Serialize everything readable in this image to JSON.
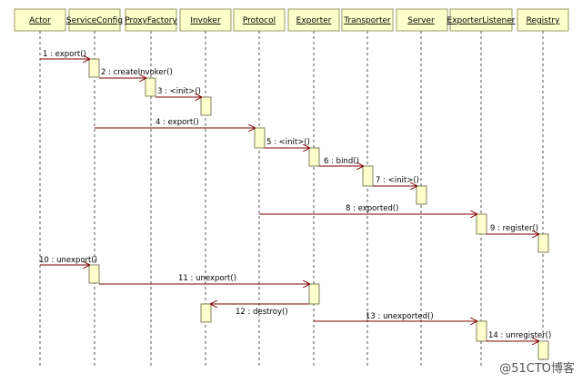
{
  "participants": [
    "Actor",
    "ServiceConfig",
    "ProxyFactory",
    "Invoker",
    "Protocol",
    "Exporter",
    "Transporter",
    "Server",
    "ExporterListener",
    "Registry"
  ],
  "messages": [
    "1 : export()",
    "2 : createInvoker()",
    "3 : <init>()",
    "4 : export()",
    "5 : <init>()",
    "6 : bind()",
    "7 : <init>()",
    "8 : exported()",
    "9 : register()",
    "10 : unexport()",
    "11 : unexport()",
    "12 : destroy()",
    "13 : unexported()",
    "14 : unregister()"
  ],
  "watermark": "@51CTO博客",
  "colors": {
    "header_fill": "#ffffcc",
    "header_border": "#999966",
    "activation_fill": "#ffffcc",
    "activation_border": "#808060",
    "arrow": "#800000",
    "lifeline": "#555555"
  }
}
